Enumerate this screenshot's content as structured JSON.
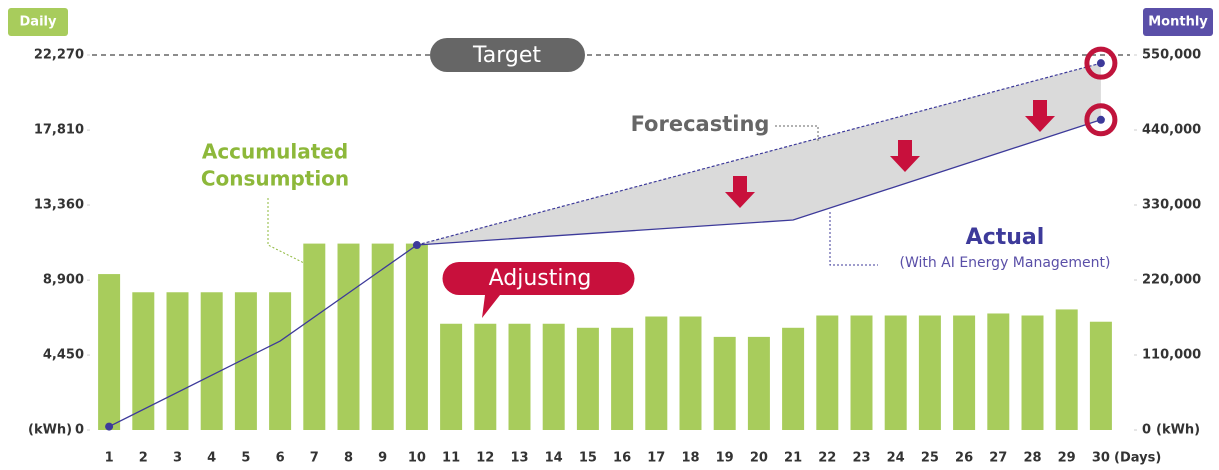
{
  "chart_data": {
    "type": "bar",
    "left_badge": "Daily",
    "right_badge": "Monthly",
    "categories": [
      "1",
      "2",
      "3",
      "4",
      "5",
      "6",
      "7",
      "8",
      "9",
      "10",
      "11",
      "12",
      "13",
      "14",
      "15",
      "16",
      "17",
      "18",
      "19",
      "20",
      "21",
      "22",
      "23",
      "24",
      "25",
      "26",
      "27",
      "28",
      "29",
      "30"
    ],
    "values": [
      9260,
      8180,
      8180,
      8180,
      8180,
      8180,
      11070,
      11070,
      11070,
      11070,
      6310,
      6310,
      6310,
      6310,
      6070,
      6070,
      6740,
      6740,
      5530,
      5530,
      6070,
      6800,
      6800,
      6800,
      6800,
      6800,
      6920,
      6800,
      7160,
      6430
    ],
    "color": "#a8cc5c",
    "ylim": [
      0,
      22270
    ],
    "yticks": [
      0,
      {
        "value": 4450,
        "label": "4,450"
      },
      {
        "value": 8900,
        "label": "8,900"
      },
      {
        "value": 13360,
        "label": "13,360"
      },
      {
        "value": 17810,
        "label": "17,810"
      },
      {
        "value": 22270,
        "label": "22,270"
      }
    ],
    "y_unit": "(kWh)",
    "y2lim": [
      0,
      550000
    ],
    "y2ticks": [
      0,
      {
        "value": 110000,
        "label": "110,000"
      },
      {
        "value": 220000,
        "label": "220,000"
      },
      {
        "value": 330000,
        "label": "330,000"
      },
      {
        "value": 440000,
        "label": "440,000"
      },
      {
        "value": 550000,
        "label": "550,000"
      }
    ],
    "y2_unit": "(kWh)",
    "x_label": "(Days)",
    "target_label": "Target",
    "series": [
      {
        "name": "Actual",
        "subtitle": "(With AI Energy Management)",
        "color": "#3d3a9a",
        "axis": "y2",
        "x": [
          1,
          6,
          10,
          21,
          30
        ],
        "values": [
          5000,
          130500,
          271300,
          308000,
          455000
        ]
      },
      {
        "name": "Forecasting",
        "color": "#3d3a9a",
        "axis": "y2",
        "x": [
          10,
          30
        ],
        "values": [
          271300,
          538000
        ]
      }
    ],
    "annotations": {
      "accumulated": [
        "Accumulated",
        "Consumption"
      ],
      "adjusting": "Adjusting"
    }
  }
}
